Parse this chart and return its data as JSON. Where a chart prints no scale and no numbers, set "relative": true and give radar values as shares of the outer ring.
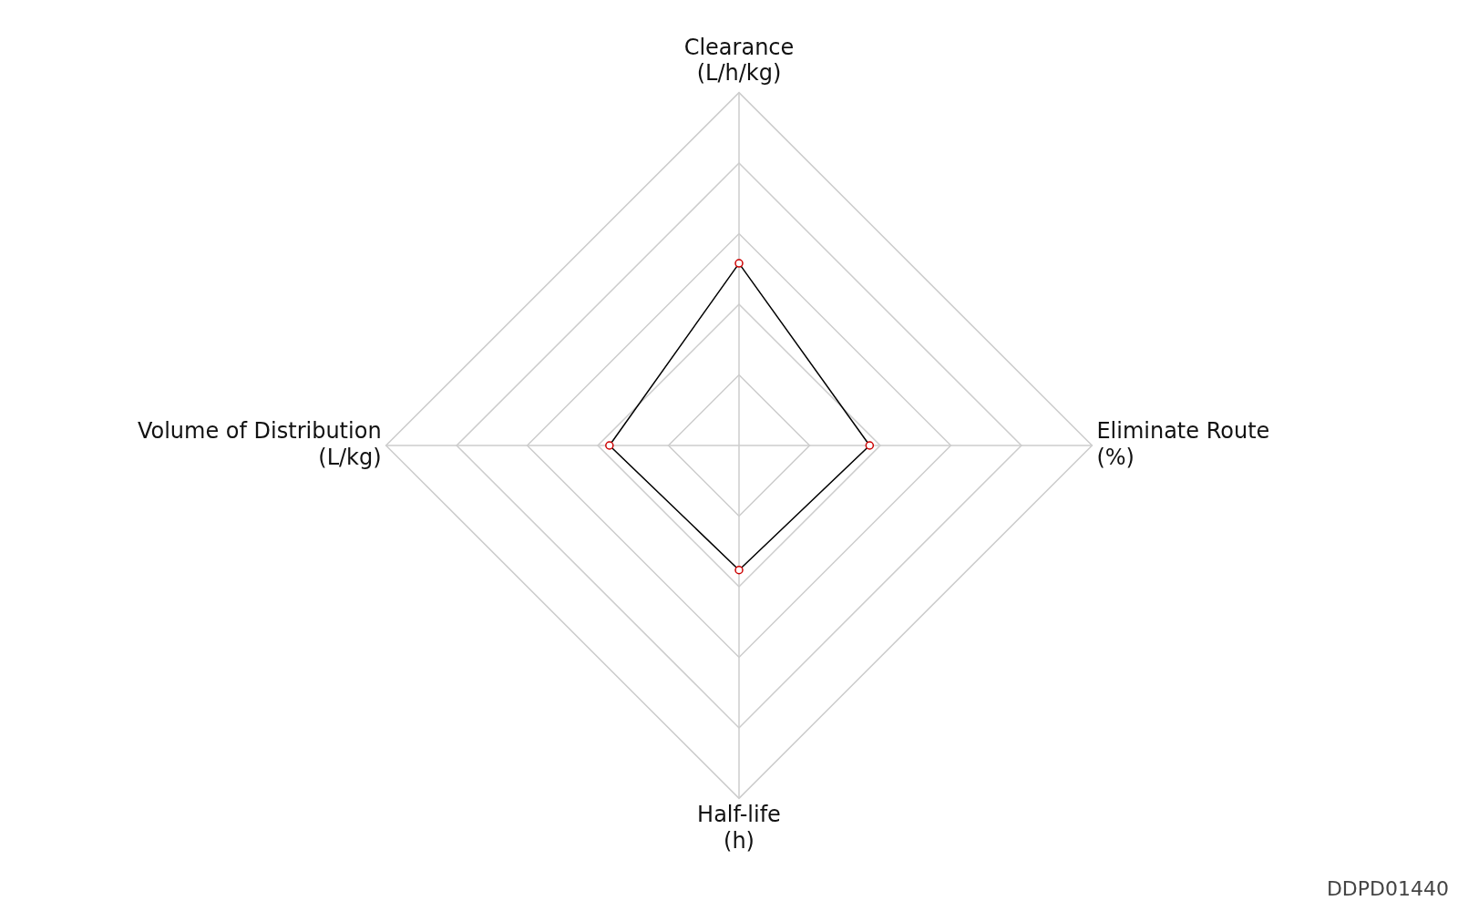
{
  "chart_data": {
    "type": "radar",
    "relative": true,
    "categories": [
      "Clearance\n(L/h/kg)",
      "Eliminate Route\n(%)",
      "Half-life\n(h)",
      "Volume of Distribution\n(L/kg)"
    ],
    "series": [
      {
        "color": "#000000",
        "values": [
          0.516,
          0.37,
          0.353,
          0.367
        ]
      }
    ],
    "marker": "circle",
    "line_style": "solid",
    "legend": false,
    "grid": true,
    "annotations": [
      "DDPD01440"
    ]
  }
}
